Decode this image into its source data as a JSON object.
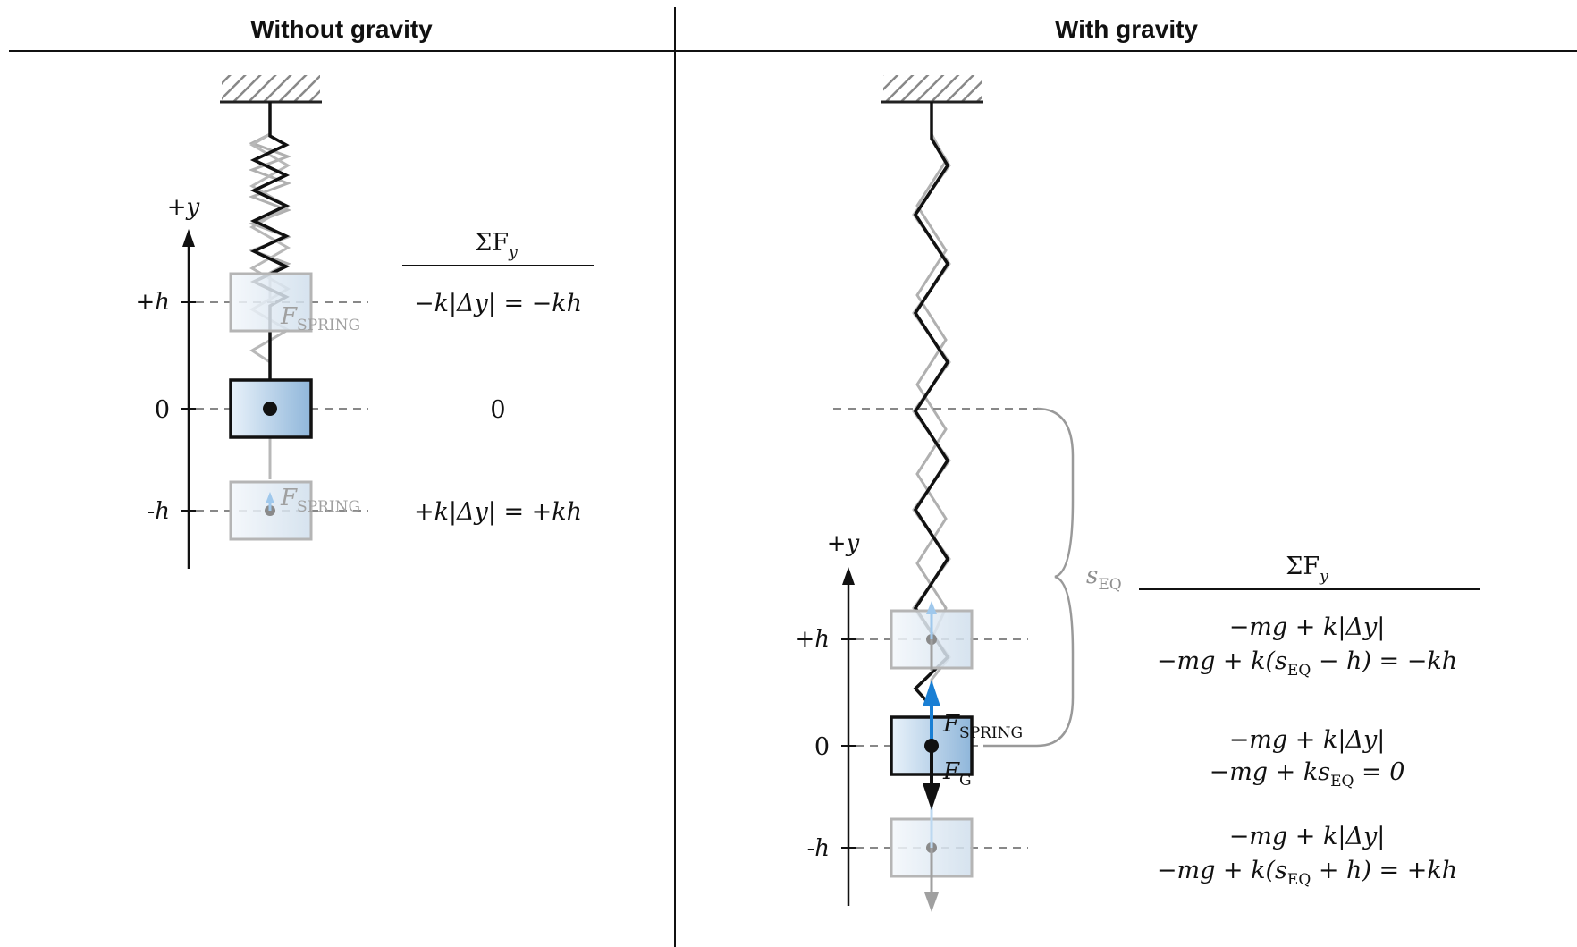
{
  "headers": {
    "left": "Without gravity",
    "right": "With gravity"
  },
  "left": {
    "axis_label": "+y",
    "ticks": [
      "+h",
      "0",
      "-h"
    ],
    "sum_header": "ΣF",
    "sum_header_sub": "y",
    "force_label": "F",
    "force_label_sub": "SPRING",
    "rows": [
      "−k|Δy| = −kh",
      "0",
      "+k|Δy| = +kh"
    ]
  },
  "right": {
    "axis_label": "+y",
    "ticks": [
      "+h",
      "0",
      "-h"
    ],
    "sum_header": "ΣF",
    "sum_header_sub": "y",
    "seq_label": "s",
    "seq_label_sub": "EQ",
    "spring_label": "F",
    "spring_label_sub": "SPRING",
    "gravity_label": "F",
    "gravity_label_sub": "G",
    "rows": [
      {
        "line1": "−mg + k|Δy|",
        "line2_a": "−mg + k(s",
        "line2_sub": "EQ",
        "line2_b": " − h) = −kh"
      },
      {
        "line1": "−mg + k|Δy|",
        "line2_a": "−mg + ks",
        "line2_sub": "EQ",
        "line2_b": " = 0"
      },
      {
        "line1": "−mg + k|Δy|",
        "line2_a": "−mg + k(s",
        "line2_sub": "EQ",
        "line2_b": " + h) = +kh"
      }
    ]
  },
  "colors": {
    "block_fill": "#9cc2e0",
    "arrow_blue": "#1a7fd4",
    "ghost_gray": "#a9a9a9"
  }
}
